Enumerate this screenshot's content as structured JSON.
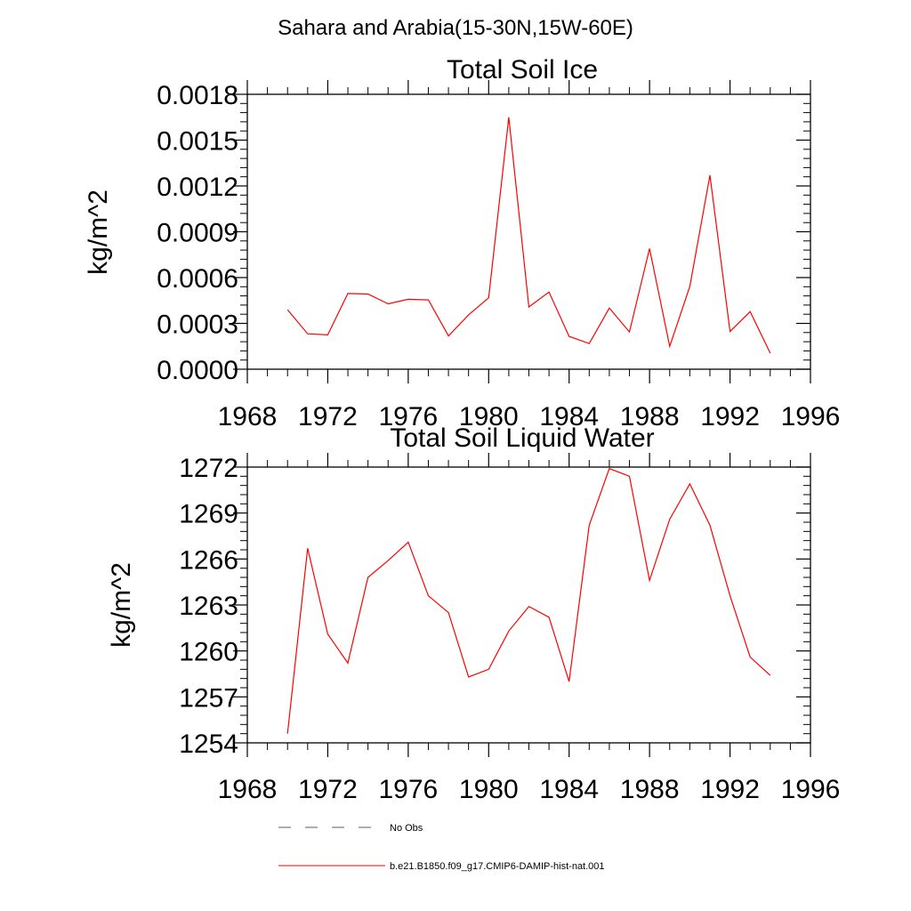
{
  "figure": {
    "suptitle": "Sahara and Arabia(15-30N,15W-60E)"
  },
  "colors": {
    "model_line": "#ff0000",
    "obs_line": "#5a5a78",
    "axes": "#000000"
  },
  "chart_data": [
    {
      "type": "line",
      "title": "Total Soil Ice",
      "ylabel": "kg/m^2",
      "xlabel": "",
      "xlim": [
        1968,
        1996
      ],
      "ylim": [
        0.0,
        0.0018
      ],
      "xticks": [
        1968,
        1972,
        1976,
        1980,
        1984,
        1988,
        1992,
        1996
      ],
      "yticks": [
        "0.0000",
        "0.0003",
        "0.0006",
        "0.0009",
        "0.0012",
        "0.0015",
        "0.0018"
      ],
      "grid": false,
      "series": [
        {
          "name": "b.e21.B1850.f09_g17.CMIP6-DAMIP-hist-nat.001",
          "x": [
            1970,
            1971,
            1972,
            1973,
            1974,
            1975,
            1976,
            1977,
            1978,
            1979,
            1980,
            1981,
            1982,
            1983,
            1984,
            1985,
            1986,
            1987,
            1988,
            1989,
            1990,
            1991,
            1992,
            1993,
            1994
          ],
          "values": [
            0.00039,
            0.000232,
            0.000225,
            0.000496,
            0.000492,
            0.000428,
            0.000458,
            0.000454,
            0.000218,
            0.000356,
            0.000468,
            0.00165,
            0.000408,
            0.000505,
            0.000215,
            0.000168,
            0.0004,
            0.000244,
            0.00079,
            0.00015,
            0.000542,
            0.00127,
            0.000247,
            0.000377,
            0.000105
          ]
        }
      ]
    },
    {
      "type": "line",
      "title": "Total Soil Liquid Water",
      "ylabel": "kg/m^2",
      "xlabel": "",
      "xlim": [
        1968,
        1996
      ],
      "ylim": [
        1254,
        1272
      ],
      "xticks": [
        1968,
        1972,
        1976,
        1980,
        1984,
        1988,
        1992,
        1996
      ],
      "yticks": [
        "1254",
        "1257",
        "1260",
        "1263",
        "1266",
        "1269",
        "1272"
      ],
      "grid": false,
      "series": [
        {
          "name": "b.e21.B1850.f09_g17.CMIP6-DAMIP-hist-nat.001",
          "x": [
            1970,
            1971,
            1972,
            1973,
            1974,
            1975,
            1976,
            1977,
            1978,
            1979,
            1980,
            1981,
            1982,
            1983,
            1984,
            1985,
            1986,
            1987,
            1988,
            1989,
            1990,
            1991,
            1992,
            1993,
            1994
          ],
          "values": [
            1254.6,
            1266.7,
            1261.1,
            1259.2,
            1264.8,
            1265.9,
            1267.1,
            1263.6,
            1262.5,
            1258.3,
            1258.8,
            1261.3,
            1262.9,
            1262.2,
            1258.0,
            1268.2,
            1271.9,
            1271.4,
            1264.6,
            1268.6,
            1270.9,
            1268.2,
            1263.6,
            1259.6,
            1258.4
          ]
        }
      ]
    }
  ],
  "legend": {
    "placement": "bottom",
    "items": [
      {
        "label": "No Obs",
        "style": "dashed"
      },
      {
        "label": "b.e21.B1850.f09_g17.CMIP6-DAMIP-hist-nat.001",
        "style": "solid"
      }
    ]
  }
}
